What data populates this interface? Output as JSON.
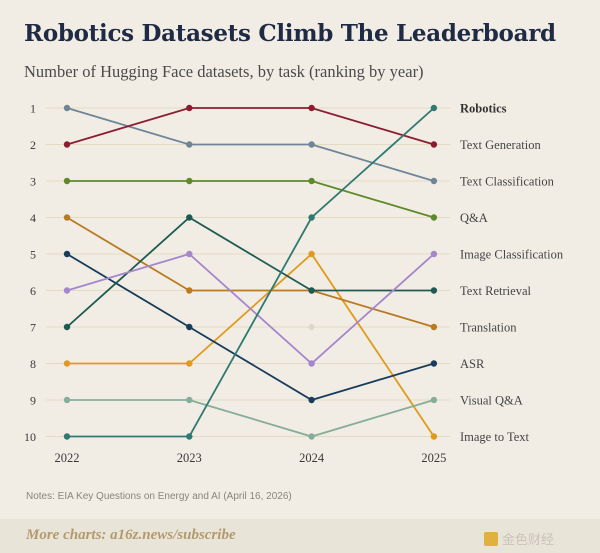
{
  "title": "Robotics Datasets Climb The Leaderboard",
  "subtitle": "Number of Hugging Face datasets, by task (ranking by year)",
  "notes": "Notes: EIA Key Questions on Energy and AI (April 16, 2026)",
  "footer": {
    "link": "More charts: a16z.news/subscribe",
    "watermark": "金色财经"
  },
  "chart_data": {
    "type": "line",
    "title": "Robotics Datasets Climb The Leaderboard",
    "subtitle": "Number of Hugging Face datasets, by task (ranking by year)",
    "x": [
      "2022",
      "2023",
      "2024",
      "2025"
    ],
    "y_ticks": [
      1,
      2,
      3,
      4,
      5,
      6,
      7,
      8,
      9,
      10
    ],
    "ylim": [
      1,
      10
    ],
    "y_inverted": true,
    "grid": true,
    "legend": "right-end labels",
    "series": [
      {
        "name": "Robotics",
        "values": [
          10,
          10,
          4,
          1
        ],
        "color": "#2f7a72"
      },
      {
        "name": "Text Generation",
        "values": [
          2,
          1,
          1,
          2
        ],
        "color": "#8c1c31"
      },
      {
        "name": "Text Classification",
        "values": [
          1,
          2,
          2,
          3
        ],
        "color": "#6f8597"
      },
      {
        "name": "Q&A",
        "values": [
          3,
          3,
          3,
          4
        ],
        "color": "#5e8a2a"
      },
      {
        "name": "Image Classification",
        "values": [
          6,
          5,
          8,
          5
        ],
        "color": "#a585cc"
      },
      {
        "name": "Text Retrieval",
        "values": [
          7,
          4,
          6,
          6
        ],
        "color": "#1d5a52"
      },
      {
        "name": "Translation",
        "values": [
          4,
          6,
          6,
          7
        ],
        "color": "#b97a22"
      },
      {
        "name": "ASR",
        "values": [
          5,
          7,
          9,
          8
        ],
        "color": "#183c5c"
      },
      {
        "name": "Visual Q&A",
        "values": [
          9,
          9,
          10,
          9
        ],
        "color": "#86ad98"
      },
      {
        "name": "Image to Text",
        "values": [
          8,
          8,
          5,
          10
        ],
        "color": "#e09a1a"
      }
    ]
  }
}
